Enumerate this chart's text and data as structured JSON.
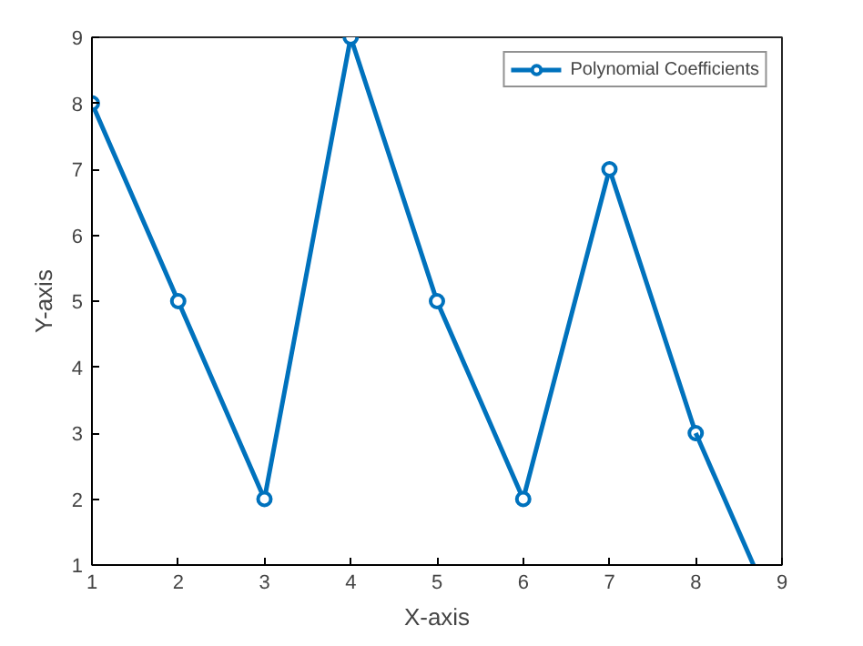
{
  "chart_data": {
    "type": "line",
    "xlabel": "X-axis",
    "ylabel": "Y-axis",
    "x": [
      1,
      2,
      3,
      4,
      5,
      6,
      7,
      8
    ],
    "series": [
      {
        "name": "Polynomial Coefficients",
        "color": "#0072bd",
        "values": [
          8,
          5,
          2,
          9,
          5,
          2,
          7,
          3
        ]
      },
      {
        "color": "#0072bd",
        "x": [
          8,
          8.67
        ],
        "values": [
          3,
          1
        ],
        "marker": "none"
      }
    ],
    "xlim": [
      1,
      9
    ],
    "ylim": [
      1,
      9
    ],
    "xticks": [
      1,
      2,
      3,
      4,
      5,
      6,
      7,
      8,
      9
    ],
    "yticks": [
      1,
      2,
      3,
      4,
      5,
      6,
      7,
      8,
      9
    ],
    "grid": false,
    "legend": "top right",
    "marker": "circle",
    "line_style": "solid"
  }
}
